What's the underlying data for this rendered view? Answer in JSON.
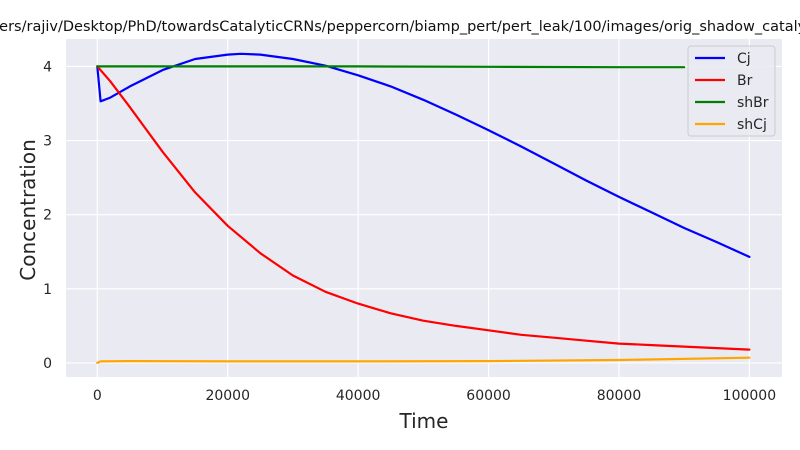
{
  "chart_data": {
    "type": "line",
    "title": "/Users/rajiv/Desktop/PhD/towardsCatalyticCRNs/peppercorn/biamp_pert/pert_leak/100/images/orig_shadow_catalytic",
    "xlabel": "Time",
    "ylabel": "Concentration",
    "xlim": [
      -4800,
      105000
    ],
    "ylim": [
      -0.19,
      4.37
    ],
    "xticks": [
      0,
      20000,
      40000,
      60000,
      80000,
      100000
    ],
    "yticks": [
      0,
      1,
      2,
      3,
      4
    ],
    "grid": true,
    "legend_position": "top-right",
    "series": [
      {
        "name": "Cj",
        "color": "#0000ff",
        "x": [
          0,
          500,
          2000,
          5000,
          10000,
          15000,
          20000,
          22000,
          25000,
          30000,
          35000,
          40000,
          45000,
          50000,
          55000,
          60000,
          65000,
          70000,
          75000,
          80000,
          85000,
          90000,
          95000,
          100000
        ],
        "y": [
          4.0,
          3.53,
          3.58,
          3.73,
          3.95,
          4.1,
          4.16,
          4.17,
          4.16,
          4.1,
          4.01,
          3.88,
          3.73,
          3.55,
          3.35,
          3.14,
          2.92,
          2.69,
          2.46,
          2.24,
          2.03,
          1.82,
          1.63,
          1.43
        ]
      },
      {
        "name": "Br",
        "color": "#ff0000",
        "x": [
          0,
          2000,
          5000,
          10000,
          15000,
          20000,
          25000,
          30000,
          35000,
          40000,
          45000,
          50000,
          55000,
          60000,
          65000,
          70000,
          75000,
          80000,
          85000,
          90000,
          95000,
          100000
        ],
        "y": [
          4.0,
          3.8,
          3.45,
          2.85,
          2.3,
          1.85,
          1.48,
          1.18,
          0.96,
          0.8,
          0.67,
          0.57,
          0.5,
          0.44,
          0.38,
          0.34,
          0.3,
          0.26,
          0.24,
          0.22,
          0.2,
          0.18
        ]
      },
      {
        "name": "shBr",
        "color": "#008000",
        "x": [
          0,
          20000,
          40000,
          60000,
          80000,
          90000
        ],
        "y": [
          4.0,
          4.0,
          4.0,
          3.995,
          3.99,
          3.99
        ]
      },
      {
        "name": "shCj",
        "color": "#ffa500",
        "x": [
          0,
          500,
          1000,
          5000,
          20000,
          40000,
          60000,
          80000,
          100000
        ],
        "y": [
          0.0,
          0.02,
          0.02,
          0.025,
          0.02,
          0.02,
          0.025,
          0.04,
          0.07
        ]
      }
    ]
  }
}
